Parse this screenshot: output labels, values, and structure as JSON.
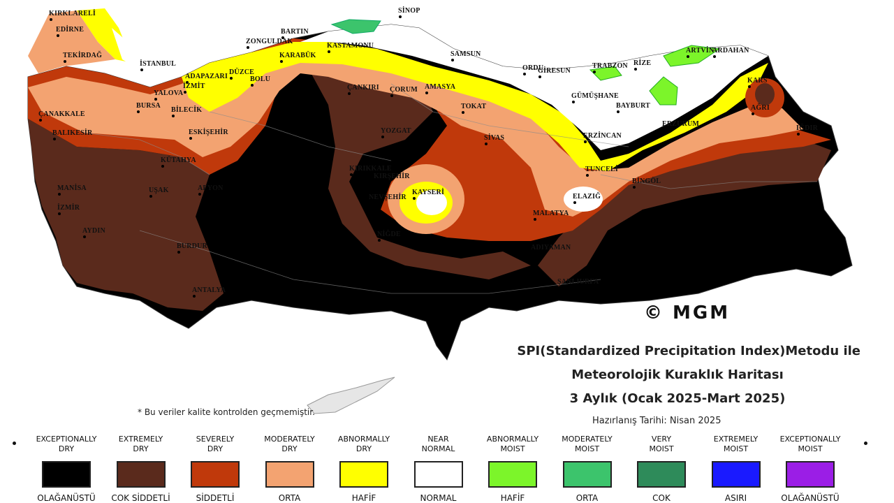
{
  "title": {
    "line1": "SPI(Standardized Precipitation Index)Metodu ile",
    "line2": "Meteorolojik Kuraklık Haritası",
    "line3": "3 Aylık (Ocak 2025-Mart 2025)"
  },
  "preparation_date": "Hazırlanış Tarihi: Nisan 2025",
  "footnote": "* Bu veriler kalite kontrolden geçmemiştir.",
  "copyright": "© MGM",
  "colors": {
    "exceptionally_dry": "#000000",
    "extremely_dry": "#5a2a1c",
    "severely_dry": "#c0390b",
    "moderately_dry": "#f3a371",
    "abnormally_dry": "#ffff00",
    "near_normal": "#ffffff",
    "abnormally_moist": "#7cf52a",
    "moderately_moist": "#3cc46c",
    "very_moist": "#2e8b5a",
    "extremely_moist": "#1a1aff",
    "exceptionally_moist": "#9b1ee6"
  },
  "legend": [
    {
      "en": "EXCEPTIONALLY\nDRY",
      "tr": "OLAĞANÜSTÜ",
      "color": "#000000"
    },
    {
      "en": "EXTREMELY\nDRY",
      "tr": "COK SİDDETLİ",
      "color": "#5a2a1c"
    },
    {
      "en": "SEVERELY\nDRY",
      "tr": "SİDDETLİ",
      "color": "#c0390b"
    },
    {
      "en": "MODERATELY\nDRY",
      "tr": "ORTA",
      "color": "#f3a371"
    },
    {
      "en": "ABNORMALLY\nDRY",
      "tr": "HAFİF",
      "color": "#ffff00"
    },
    {
      "en": "NEAR\nNORMAL",
      "tr": "NORMAL",
      "color": "#ffffff"
    },
    {
      "en": "ABNORMALLY\nMOIST",
      "tr": "HAFİF",
      "color": "#7cf52a"
    },
    {
      "en": "MODERATELY\nMOIST",
      "tr": "ORTA",
      "color": "#3cc46c"
    },
    {
      "en": "VERY\nMOIST",
      "tr": "COK",
      "color": "#2e8b5a"
    },
    {
      "en": "EXTREMELY\nMOIST",
      "tr": "ASIRI",
      "color": "#1a1aff"
    },
    {
      "en": "EXCEPTIONALLY\nMOIST",
      "tr": "OLAĞANÜSTÜ",
      "color": "#9b1ee6"
    }
  ],
  "cities": [
    "KIRKLARELİ",
    "EDİRNE",
    "TEKİRDAĞ",
    "İSTANBUL",
    "YALOVA",
    "ÇANAKKALE",
    "BURSA",
    "BALIKESİR",
    "BİLECİK",
    "ESKİŞEHİR",
    "KÜTAHYA",
    "MANİSA",
    "İZMİR",
    "AYDIN",
    "UŞAK",
    "AFYON",
    "BURDUR",
    "ANTALYA",
    "ADAPAZARI",
    "İZMİT",
    "DÜZCE",
    "BOLU",
    "ZONGULDAK",
    "BARTIN",
    "KARABÜK",
    "KASTAMONU",
    "SİNOP",
    "SAMSUN",
    "ORDU",
    "GİRESUN",
    "TRABZON",
    "RİZE",
    "ARTVİN",
    "ARDAHAN",
    "KARS",
    "IĞDIR",
    "AĞRI",
    "ERZURUM",
    "BAYBURT",
    "GÜMÜŞHANE",
    "ERZİNCAN",
    "TUNCELİ",
    "BİNGÖL",
    "ELAZIĞ",
    "MALATYA",
    "ADIYAMAN",
    "ŞANLIURFA",
    "SİVAS",
    "TOKAT",
    "AMASYA",
    "ÇORUM",
    "YOZGAT",
    "KIRIKKALE",
    "KIRŞEHİR",
    "NEVŞEHİR",
    "KAYSERİ",
    "NİĞDE",
    "ÇANKIRI"
  ]
}
